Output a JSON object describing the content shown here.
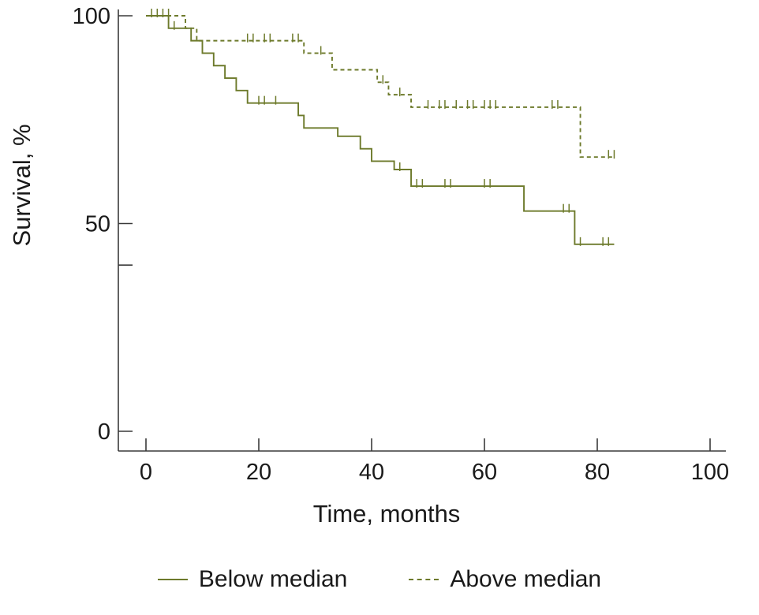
{
  "colors": {
    "accent": "#6d7a2b",
    "text": "#1a1a1a",
    "axis": "#3a3a3a"
  },
  "chart_data": {
    "type": "line",
    "subtype": "kaplan-meier-step",
    "title": "",
    "xlabel": "Time, months",
    "ylabel": "Survival, %",
    "xlim": [
      0,
      100
    ],
    "ylim": [
      0,
      100
    ],
    "x_ticks": [
      0,
      20,
      40,
      60,
      80,
      100
    ],
    "y_ticks_major": [
      0,
      50,
      100
    ],
    "y_ticks_minor": [
      40
    ],
    "grid": false,
    "legend_position": "bottom",
    "series": [
      {
        "name": "Below median",
        "style": "solid",
        "color": "#6d7a2b",
        "steps": [
          [
            0,
            100
          ],
          [
            4,
            97
          ],
          [
            8,
            94
          ],
          [
            10,
            91
          ],
          [
            12,
            88
          ],
          [
            14,
            85
          ],
          [
            16,
            82
          ],
          [
            18,
            79
          ],
          [
            27,
            76
          ],
          [
            28,
            73
          ],
          [
            34,
            71
          ],
          [
            38,
            68
          ],
          [
            40,
            65
          ],
          [
            44,
            63
          ],
          [
            47,
            59
          ],
          [
            67,
            53
          ],
          [
            76,
            45
          ]
        ],
        "end": 83,
        "censors": [
          [
            1,
            100
          ],
          [
            2,
            100
          ],
          [
            5,
            97
          ],
          [
            20,
            79
          ],
          [
            21,
            79
          ],
          [
            23,
            79
          ],
          [
            45,
            63
          ],
          [
            48,
            59
          ],
          [
            49,
            59
          ],
          [
            53,
            59
          ],
          [
            54,
            59
          ],
          [
            60,
            59
          ],
          [
            61,
            59
          ],
          [
            74,
            53
          ],
          [
            75,
            53
          ],
          [
            77,
            45
          ],
          [
            81,
            45
          ],
          [
            82,
            45
          ]
        ]
      },
      {
        "name": "Above median",
        "style": "dashed",
        "color": "#6d7a2b",
        "steps": [
          [
            0,
            100
          ],
          [
            7,
            97
          ],
          [
            9,
            94
          ],
          [
            28,
            91
          ],
          [
            33,
            87
          ],
          [
            41,
            84
          ],
          [
            43,
            81
          ],
          [
            47,
            78
          ],
          [
            77,
            66
          ]
        ],
        "end": 83,
        "censors": [
          [
            3,
            100
          ],
          [
            4,
            100
          ],
          [
            18,
            94
          ],
          [
            19,
            94
          ],
          [
            21,
            94
          ],
          [
            22,
            94
          ],
          [
            26,
            94
          ],
          [
            27,
            94
          ],
          [
            31,
            91
          ],
          [
            42,
            84
          ],
          [
            45,
            81
          ],
          [
            50,
            78
          ],
          [
            52,
            78
          ],
          [
            53,
            78
          ],
          [
            55,
            78
          ],
          [
            57,
            78
          ],
          [
            58,
            78
          ],
          [
            60,
            78
          ],
          [
            61,
            78
          ],
          [
            62,
            78
          ],
          [
            72,
            78
          ],
          [
            73,
            78
          ],
          [
            82,
            66
          ],
          [
            83,
            66
          ]
        ]
      }
    ]
  }
}
